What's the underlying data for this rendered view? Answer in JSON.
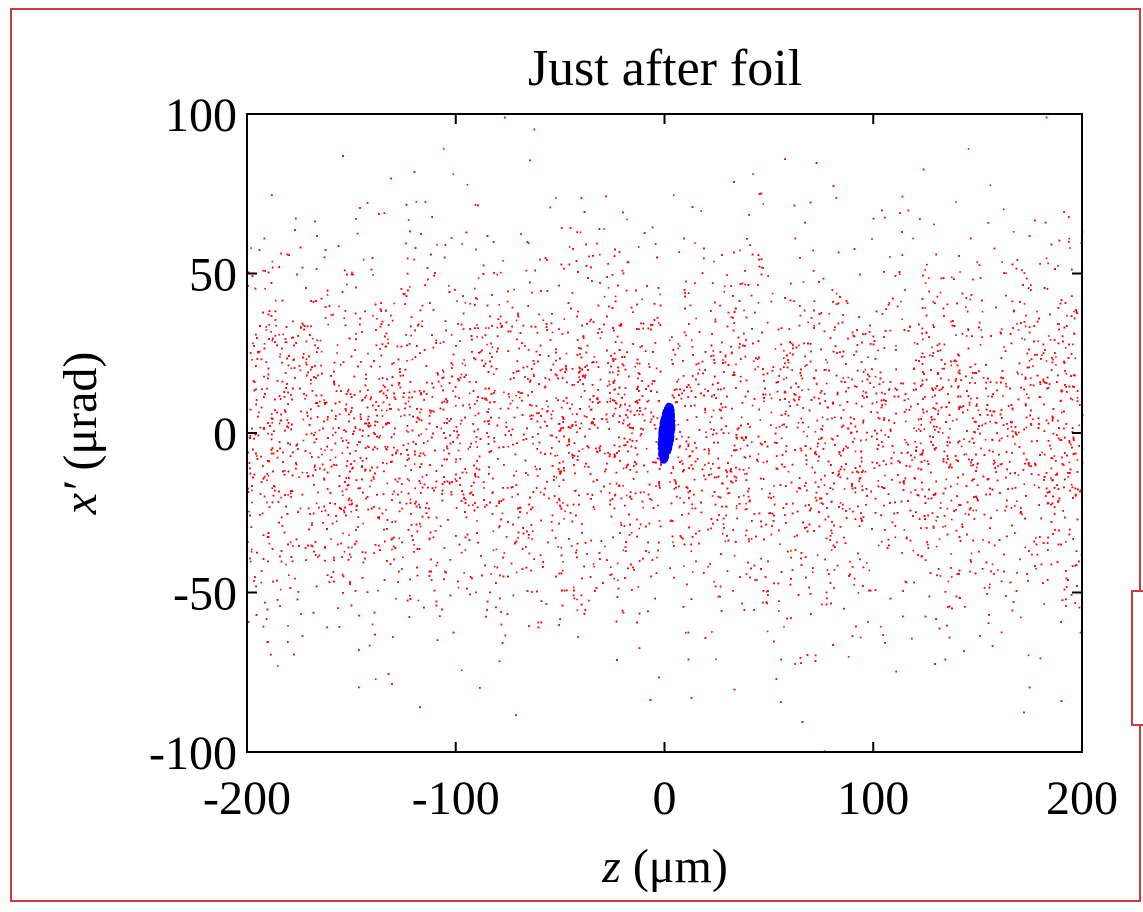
{
  "chart_data": {
    "type": "scatter",
    "title": "Just after foil",
    "xlabel": {
      "var": "z",
      "unit": " (μm)"
    },
    "ylabel": {
      "var": "x′",
      "unit": " (μrad)"
    },
    "xlim": [
      -200,
      200
    ],
    "ylim": [
      -100,
      100
    ],
    "xticks": [
      "-200",
      "-100",
      "0",
      "100",
      "200"
    ],
    "xtick_values": [
      -200,
      -100,
      0,
      100,
      200
    ],
    "yticks": [
      "100",
      "50",
      "0",
      "-50",
      "-100"
    ],
    "ytick_values": [
      100,
      50,
      0,
      -50,
      -100
    ],
    "grid": false,
    "series": [
      {
        "color": "#ff0000",
        "distribution": {
          "x_range": [
            -200,
            200
          ],
          "y_center": 0,
          "y_sigma": 30,
          "gap_center_x": 0,
          "gap_half_width": 2,
          "points": 14000
        }
      },
      {
        "color": "#0000ff",
        "distribution": {
          "x_center": 1,
          "y_center": 0,
          "x_half_width": 3,
          "y_half_width": 9,
          "tilt_dx_per_dy": 0.15,
          "points": 700
        }
      }
    ]
  }
}
